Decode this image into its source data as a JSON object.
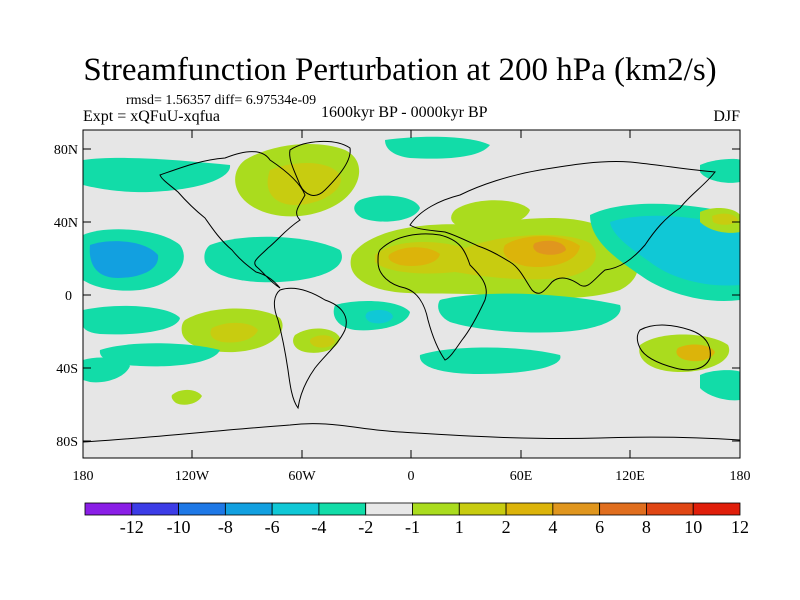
{
  "title": "Streamfunction Perturbation at 200 hPa (km2/s)",
  "stats": "rmsd= 1.56357 diff= 6.97534e-09",
  "experiment": "Expt = xQFuU-xqfua",
  "period": "1600kyr BP - 0000kyr BP",
  "season": "DJF",
  "lat_labels": [
    "80N",
    "40N",
    "0",
    "40S",
    "80S"
  ],
  "lon_labels": [
    "180",
    "120W",
    "60W",
    "0",
    "60E",
    "120E",
    "180"
  ],
  "colorbar": {
    "labels": [
      "-12",
      "-10",
      "-8",
      "-6",
      "-4",
      "-2",
      "-1",
      "1",
      "2",
      "4",
      "6",
      "8",
      "10",
      "12"
    ],
    "colors": [
      "#8a1ee6",
      "#3c3ce6",
      "#1e78e6",
      "#12a0e0",
      "#10c8d6",
      "#12dca8",
      "#e8e8e8",
      "#aadc1e",
      "#c8cc10",
      "#dcb40a",
      "#e0961e",
      "#e06e1e",
      "#e04614",
      "#e01e0a"
    ]
  },
  "colors": {
    "neutral": "#e6e6e6",
    "coast": "#000000"
  }
}
